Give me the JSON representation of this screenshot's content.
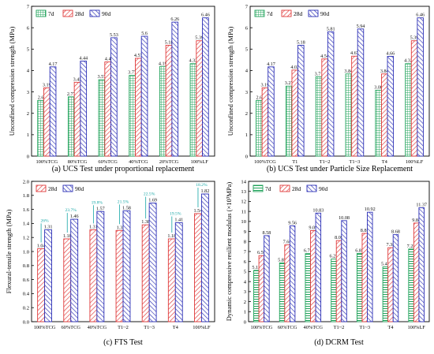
{
  "chart_data": [
    {
      "type": "bar",
      "title": "(a) UCS Test under proportional replacement",
      "ylabel": "Unconfined compression strength (MPa)",
      "ylim": [
        0,
        7
      ],
      "yticks": [
        0,
        1,
        2,
        3,
        4,
        5,
        6,
        7
      ],
      "categories": [
        "100%TCG",
        "80%TCG",
        "60%TCG",
        "40%TCG",
        "20%TCG",
        "100%LF"
      ],
      "legend_position": "top-left",
      "series": [
        {
          "name": "7d",
          "values": [
            2.6,
            2.77,
            3.57,
            3.77,
            4.19,
            4.32
          ],
          "labels": [
            "2.6",
            "2.77",
            "3.57",
            "3.77",
            "4.19",
            "4.32"
          ],
          "color": "#1fa25a",
          "pattern": "grid"
        },
        {
          "name": "28d",
          "values": [
            3.19,
            3.45,
            4.4,
            4.57,
            5.18,
            5.39
          ],
          "labels": [
            "3.19",
            "3.45",
            "4.4",
            "4.57",
            "5.18",
            "5.39"
          ],
          "color": "#e03a3a",
          "pattern": "diag"
        },
        {
          "name": "90d",
          "values": [
            4.17,
            4.44,
            5.53,
            5.6,
            6.26,
            6.46
          ],
          "labels": [
            "4.17",
            "4.44",
            "5.53",
            "5.6",
            "6.26",
            "6.46"
          ],
          "color": "#2b2fb6",
          "pattern": "diag"
        }
      ]
    },
    {
      "type": "bar",
      "title": "(b) UCS Test under Particle Size Replacement",
      "ylabel": "Unconfined compression strength (MPa)",
      "ylim": [
        0,
        7
      ],
      "yticks": [
        0,
        1,
        2,
        3,
        4,
        5,
        6,
        7
      ],
      "categories": [
        "100%TCG",
        "T1",
        "T1~2",
        "T1~3",
        "T4",
        "100%LF"
      ],
      "legend_position": "top-left",
      "series": [
        {
          "name": "7d",
          "values": [
            2.6,
            3.27,
            3.71,
            3.84,
            3.08,
            4.32
          ],
          "labels": [
            "2.6",
            "3.27",
            "3.71",
            "3.84",
            "3.08",
            "4.32"
          ],
          "color": "#1fa25a",
          "pattern": "grid"
        },
        {
          "name": "28d",
          "values": [
            3.19,
            4.02,
            4.54,
            4.67,
            3.84,
            5.39
          ],
          "labels": [
            "3.19",
            "4.02",
            "4.54",
            "4.67",
            "3.84",
            "5.39"
          ],
          "color": "#e03a3a",
          "pattern": "diag"
        },
        {
          "name": "90d",
          "values": [
            4.17,
            5.18,
            5.81,
            5.94,
            4.66,
            6.46
          ],
          "labels": [
            "4.17",
            "5.18",
            "5.81",
            "5.94",
            "4.66",
            "6.46"
          ],
          "color": "#2b2fb6",
          "pattern": "diag"
        }
      ]
    },
    {
      "type": "bar",
      "title": "(c) FTS Test",
      "ylabel": "Flexural-tensile strength (MPa)",
      "ylim": [
        0,
        2
      ],
      "yticks": [
        0,
        0.2,
        0.4,
        0.6,
        0.8,
        1.0,
        1.2,
        1.4,
        1.6,
        1.8,
        2.0
      ],
      "ytick_labels": [
        "0.0",
        "0.2",
        "0.4",
        "0.6",
        "0.8",
        "1.0",
        "1.2",
        "1.4",
        "1.6",
        "1.8",
        "2.0"
      ],
      "categories": [
        "100%TCG",
        "60%TCG",
        "40%TCG",
        "T1~2",
        "T1~3",
        "T4",
        "100%LF"
      ],
      "legend_position": "top-left",
      "series": [
        {
          "name": "28d",
          "values": [
            1.04,
            1.18,
            1.31,
            1.3,
            1.38,
            1.18,
            1.54
          ],
          "labels": [
            "1.04",
            "1.18",
            "1.31",
            "1.3",
            "1.38",
            "1.18",
            "1.54"
          ],
          "color": "#e03a3a",
          "pattern": "diag"
        },
        {
          "name": "90d",
          "values": [
            1.31,
            1.46,
            1.57,
            1.58,
            1.69,
            1.41,
            1.82
          ],
          "labels": [
            "1.31",
            "1.46",
            "1.57",
            "1.58",
            "1.69",
            "1.41",
            "1.82"
          ],
          "color": "#2b2fb6",
          "pattern": "diag"
        }
      ],
      "annotations": [
        "26%",
        "23.7%",
        "19.8%",
        "21.5%",
        "22.5%",
        "19.5%",
        "18.2%"
      ]
    },
    {
      "type": "bar",
      "title": "(d) DCRM Test",
      "ylabel": "Dynamic compressive resilient modulus (×10³MPa)",
      "ylim": [
        0,
        14
      ],
      "yticks": [
        0,
        1,
        2,
        3,
        4,
        5,
        6,
        7,
        8,
        9,
        10,
        11,
        12,
        13,
        14
      ],
      "categories": [
        "100%TCG",
        "60%TCG",
        "40%TCG",
        "T1~2",
        "T1~3",
        "T4",
        "100%LF"
      ],
      "legend_position": "top-left",
      "series": [
        {
          "name": "7d",
          "values": [
            5.12,
            5.87,
            6.79,
            6.25,
            6.81,
            5.47,
            7.25
          ],
          "labels": [
            "5.12",
            "5.87",
            "6.79",
            "6.25",
            "6.81",
            "5.47",
            "7.25"
          ],
          "color": "#1fa25a",
          "pattern": "hline"
        },
        {
          "name": "28d",
          "values": [
            6.59,
            7.66,
            9.09,
            8.09,
            8.81,
            7.38,
            9.84
          ],
          "labels": [
            "6.59",
            "7.66",
            "9.09",
            "8.09",
            "8.81",
            "7.38",
            "9.84"
          ],
          "color": "#e03a3a",
          "pattern": "diag"
        },
        {
          "name": "90d",
          "values": [
            8.58,
            9.56,
            10.83,
            10.08,
            10.92,
            8.68,
            11.37
          ],
          "labels": [
            "8.58",
            "9.56",
            "10.83",
            "10.08",
            "10.92",
            "8.68",
            "11.37"
          ],
          "color": "#2b2fb6",
          "pattern": "diag"
        }
      ]
    }
  ]
}
